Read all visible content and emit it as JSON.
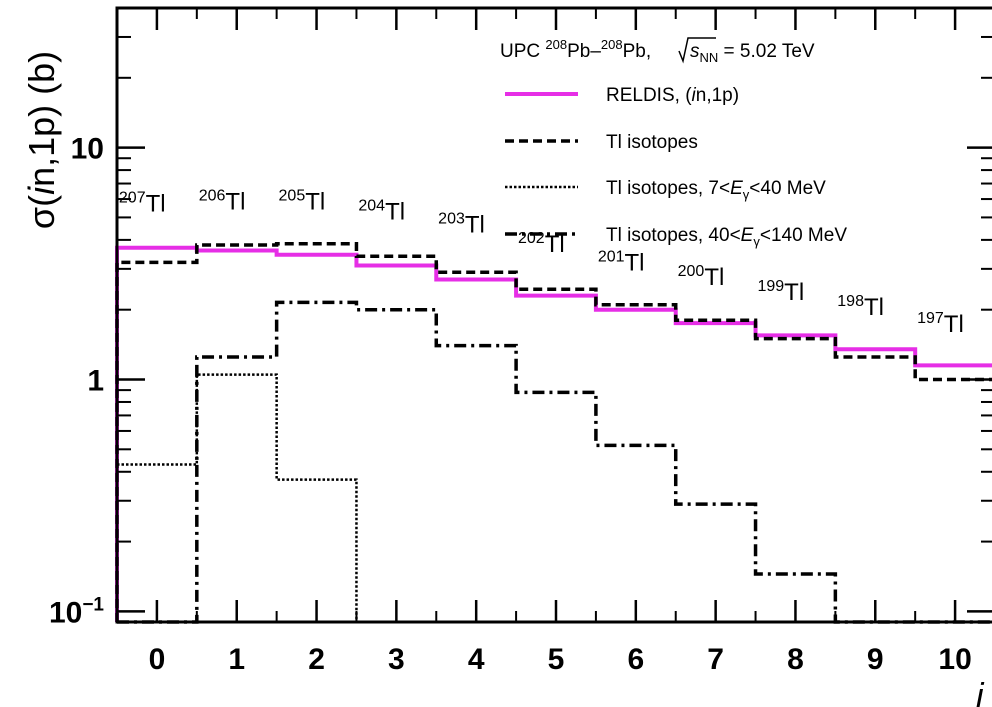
{
  "chart_data": {
    "type": "line",
    "title": "",
    "ylabel": {
      "prefix": "σ(",
      "italic": "i",
      "rest": "n,1p) (b)"
    },
    "xlabel": "",
    "x_edge_label": "i",
    "ylim": [
      0.09,
      40
    ],
    "xlim": [
      -0.5,
      10.5
    ],
    "yscale": "log",
    "x_ticks": [
      "0",
      "1",
      "2",
      "3",
      "4",
      "5",
      "6",
      "7",
      "8",
      "9",
      "10"
    ],
    "y_ticks": [
      {
        "value": 10,
        "base": "10",
        "exp": ""
      },
      {
        "value": 1,
        "base": "1",
        "exp": ""
      },
      {
        "value": 0.1,
        "base": "10",
        "exp": "−1"
      }
    ],
    "legend": {
      "placement": "top-right",
      "header": {
        "pre": "UPC ",
        "sup1": "208",
        "mid": "Pb–",
        "sup2": "208",
        "post": "Pb, ",
        "sqrt": "s",
        "sub": "NN",
        "tail": " = 5.02 TeV"
      },
      "entries": [
        {
          "series": 0,
          "parts": [
            [
              "RELDIS, (",
              ""
            ],
            [
              "i",
              "i"
            ],
            [
              "n,1p)",
              ""
            ]
          ]
        },
        {
          "series": 1,
          "parts": [
            [
              "Tl isotopes",
              ""
            ]
          ]
        },
        {
          "series": 2,
          "parts": [
            [
              "Tl isotopes, 7<",
              ""
            ],
            [
              "E",
              "i"
            ],
            [
              "γ",
              "sub"
            ],
            [
              "<40 MeV",
              ""
            ]
          ]
        },
        {
          "series": 3,
          "parts": [
            [
              "Tl isotopes, 40<",
              ""
            ],
            [
              "E",
              "i"
            ],
            [
              "γ",
              "sub"
            ],
            [
              "<140 MeV",
              ""
            ]
          ]
        }
      ]
    },
    "series": [
      {
        "name": "RELDIS, (in,1p)",
        "color": "#e62ee6",
        "style": "solid",
        "x": [
          0,
          1,
          2,
          3,
          4,
          5,
          6,
          7,
          8,
          9,
          10
        ],
        "values": [
          3.7,
          3.6,
          3.45,
          3.1,
          2.7,
          2.3,
          2.0,
          1.75,
          1.55,
          1.35,
          1.15
        ]
      },
      {
        "name": "Tl isotopes",
        "color": "#000000",
        "style": "dashed",
        "x": [
          0,
          1,
          2,
          3,
          4,
          5,
          6,
          7,
          8,
          9,
          10
        ],
        "values": [
          3.2,
          3.8,
          3.85,
          3.4,
          2.9,
          2.45,
          2.1,
          1.8,
          1.5,
          1.25,
          1.0
        ]
      },
      {
        "name": "Tl isotopes, 7<Eγ<40 MeV",
        "color": "#000000",
        "style": "dotted",
        "x": [
          0,
          1,
          2,
          3,
          4,
          5,
          6,
          7,
          8,
          9,
          10
        ],
        "values": [
          0.43,
          1.05,
          0.37,
          0.09,
          0.09,
          0.09,
          0.09,
          0.09,
          0.09,
          0.09,
          0.09
        ]
      },
      {
        "name": "Tl isotopes, 40<Eγ<140 MeV",
        "color": "#000000",
        "style": "dashdot",
        "x": [
          0,
          1,
          2,
          3,
          4,
          5,
          6,
          7,
          8,
          9,
          10
        ],
        "values": [
          0.09,
          1.25,
          2.15,
          2.0,
          1.4,
          0.88,
          0.52,
          0.29,
          0.145,
          0.09,
          0.09
        ]
      }
    ],
    "annotations": [
      {
        "mass": "207",
        "element": "Tl",
        "x": 0,
        "y": 5.3
      },
      {
        "mass": "206",
        "element": "Tl",
        "x": 1,
        "y": 5.4
      },
      {
        "mass": "205",
        "element": "Tl",
        "x": 2,
        "y": 5.4
      },
      {
        "mass": "204",
        "element": "Tl",
        "x": 3,
        "y": 4.9
      },
      {
        "mass": "203",
        "element": "Tl",
        "x": 4,
        "y": 4.3
      },
      {
        "mass": "202",
        "element": "Tl",
        "x": 5,
        "y": 3.55
      },
      {
        "mass": "201",
        "element": "Tl",
        "x": 6,
        "y": 2.95
      },
      {
        "mass": "200",
        "element": "Tl",
        "x": 7,
        "y": 2.55
      },
      {
        "mass": "199",
        "element": "Tl",
        "x": 8,
        "y": 2.2
      },
      {
        "mass": "198",
        "element": "Tl",
        "x": 9,
        "y": 1.9
      },
      {
        "mass": "197",
        "element": "Tl",
        "x": 10,
        "y": 1.6
      }
    ]
  }
}
